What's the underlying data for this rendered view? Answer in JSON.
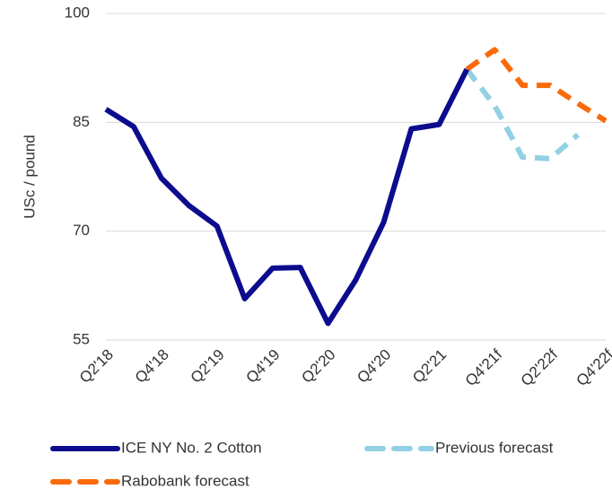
{
  "chart_data": {
    "type": "line",
    "y_label": "USc / pound",
    "categories": [
      "Q2'18",
      null,
      "Q4'18",
      null,
      "Q2'19",
      null,
      "Q4'19",
      null,
      "Q2'20",
      null,
      "Q4'20",
      null,
      "Q2'21",
      null,
      "Q4'21f",
      null,
      "Q2'22f",
      null,
      "Q4'22f"
    ],
    "series": [
      {
        "name": "ICE NY No. 2 Cotton",
        "color": "#0c0c8e",
        "dashed": false,
        "values": [
          86.8,
          84.4,
          77.3,
          73.5,
          70.7,
          60.7,
          64.9,
          65.0,
          57.3,
          63.3,
          71.2,
          84.1,
          84.7,
          92.3,
          null,
          null,
          null,
          null,
          null
        ]
      },
      {
        "name": "Previous forecast",
        "color": "#92d0e3",
        "dashed": true,
        "values": [
          null,
          null,
          null,
          null,
          null,
          null,
          null,
          null,
          null,
          null,
          null,
          null,
          null,
          92.3,
          87.3,
          80.2,
          80.0,
          83.3,
          null
        ]
      },
      {
        "name": "Rabobank forecast",
        "color": "#fa6a0a",
        "dashed": true,
        "values": [
          null,
          null,
          null,
          null,
          null,
          null,
          null,
          null,
          null,
          null,
          null,
          null,
          null,
          92.3,
          95.0,
          90.1,
          90.1,
          87.6,
          85.2
        ]
      }
    ],
    "ylim": [
      55,
      100
    ],
    "yticks": [
      55,
      70,
      85,
      100
    ],
    "grid": true
  }
}
